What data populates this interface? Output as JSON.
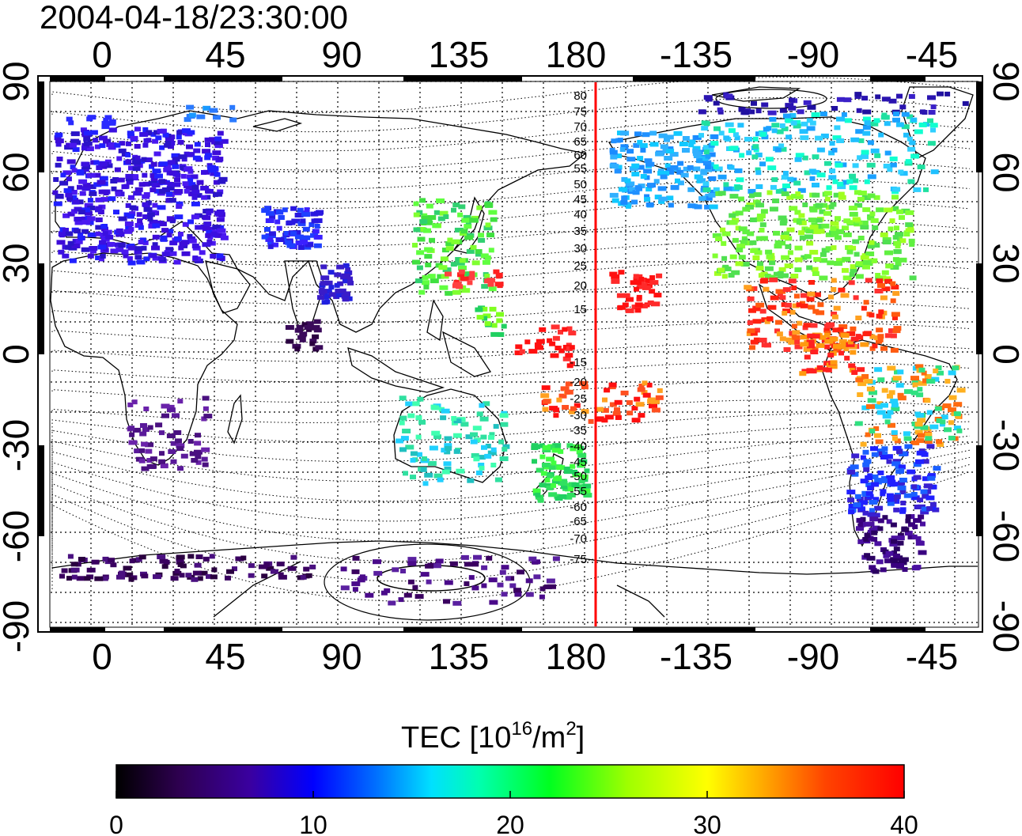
{
  "title": "2004-04-18/23:30:00",
  "top_lon_labels": [
    "0",
    "45",
    "90",
    "135",
    "180",
    "-135",
    "-90",
    "-45"
  ],
  "bottom_lon_labels": [
    "0",
    "45",
    "90",
    "135",
    "180",
    "-135",
    "-90",
    "-45"
  ],
  "left_lat_labels": [
    "90",
    "60",
    "30",
    "0",
    "-30",
    "-60",
    "-90"
  ],
  "right_lat_labels": [
    "90",
    "60",
    "30",
    "0",
    "-30",
    "-60",
    "-90"
  ],
  "contour_labels": [
    "80",
    "75",
    "70",
    "65",
    "60",
    "55",
    "50",
    "45",
    "40",
    "35",
    "30",
    "25",
    "20",
    "15",
    "-15",
    "-20",
    "-25",
    "-30",
    "-35",
    "-40",
    "-45",
    "-50",
    "-55",
    "-60",
    "-65",
    "-70",
    "-75"
  ],
  "colorbar": {
    "title_main": "TEC  [10",
    "title_sup1": "16",
    "title_mid": "/m",
    "title_sup2": "2",
    "title_end": "]",
    "tick_labels": [
      "0",
      "10",
      "20",
      "30",
      "40"
    ],
    "min": 0,
    "max": 40,
    "colors": [
      "#000000",
      "#3a0070",
      "#2a10d0",
      "#0000ff",
      "#0088ff",
      "#00ffff",
      "#00ff80",
      "#00ff00",
      "#aaff00",
      "#ffff00",
      "#ffaa00",
      "#ff5500",
      "#ff0000"
    ]
  },
  "terminator_color": "#ff0000"
}
